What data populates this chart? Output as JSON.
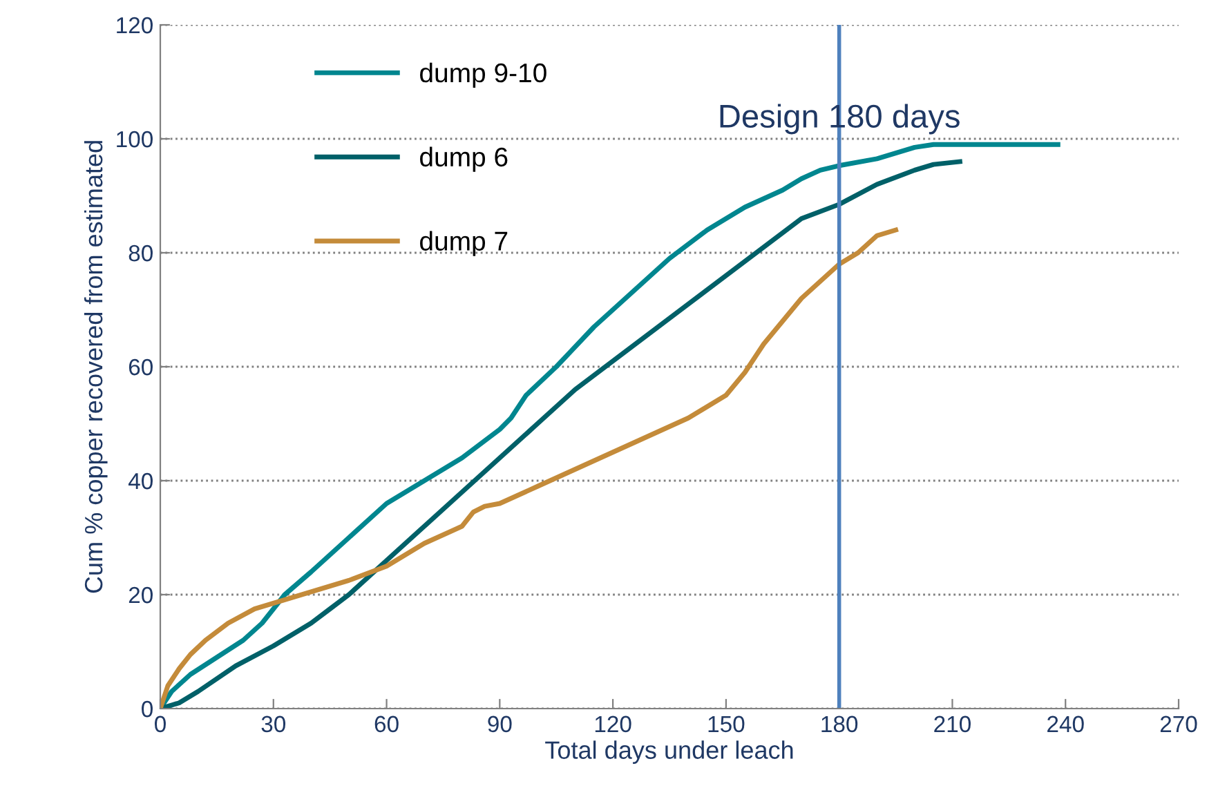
{
  "chart_data": {
    "type": "line",
    "xlabel": "Total days under leach",
    "ylabel": "Cum % copper recovered from estimated",
    "xlim": [
      0,
      270
    ],
    "xticks": [
      0,
      30,
      60,
      90,
      120,
      150,
      180,
      210,
      240,
      270
    ],
    "ylim": [
      0,
      120
    ],
    "yticks": [
      0,
      20,
      40,
      60,
      80,
      100,
      120
    ],
    "grid": "y",
    "legend": "top left",
    "marker": "none",
    "line_style": "solid",
    "ref_lines": [
      {
        "axis": "x",
        "value": 180,
        "label": "Design 180 days",
        "color": "#4f81bd"
      }
    ],
    "series": [
      {
        "name": "dump 9-10",
        "color": "#00868f",
        "x": [
          0,
          3,
          8,
          15,
          22,
          27,
          33,
          40,
          50,
          60,
          70,
          80,
          90,
          93,
          97,
          105,
          115,
          125,
          135,
          145,
          155,
          165,
          170,
          175,
          180,
          190,
          200,
          205,
          238
        ],
        "values": [
          0,
          3,
          6,
          9,
          12,
          15,
          20,
          24,
          30,
          36,
          40,
          44,
          49,
          51,
          55,
          60,
          67,
          73,
          79,
          84,
          88,
          91,
          93,
          94.5,
          95.3,
          96.5,
          98.5,
          99,
          99
        ]
      },
      {
        "name": "dump 6",
        "color": "#006068",
        "x": [
          0,
          5,
          10,
          20,
          30,
          40,
          45,
          50,
          60,
          70,
          80,
          90,
          100,
          110,
          120,
          130,
          140,
          150,
          160,
          170,
          180,
          190,
          200,
          205,
          212
        ],
        "values": [
          0,
          1,
          3,
          7.5,
          11,
          15,
          17.5,
          20,
          26,
          32,
          38,
          44,
          50,
          56,
          61,
          66,
          71,
          76,
          81,
          86,
          88.5,
          92,
          94.5,
          95.5,
          96
        ]
      },
      {
        "name": "dump 7",
        "color": "#c48b3a",
        "x": [
          0,
          2,
          5,
          8,
          12,
          18,
          25,
          30,
          40,
          50,
          60,
          65,
          70,
          80,
          83,
          86,
          90,
          100,
          110,
          120,
          130,
          140,
          150,
          155,
          160,
          170,
          180,
          185,
          190,
          195
        ],
        "values": [
          0,
          4,
          7,
          9.5,
          12,
          15,
          17.5,
          18.5,
          20.5,
          22.5,
          25,
          27,
          29,
          32,
          34.5,
          35.5,
          36,
          39,
          42,
          45,
          48,
          51,
          55,
          59,
          64,
          72,
          78,
          80,
          83,
          84
        ]
      }
    ]
  }
}
